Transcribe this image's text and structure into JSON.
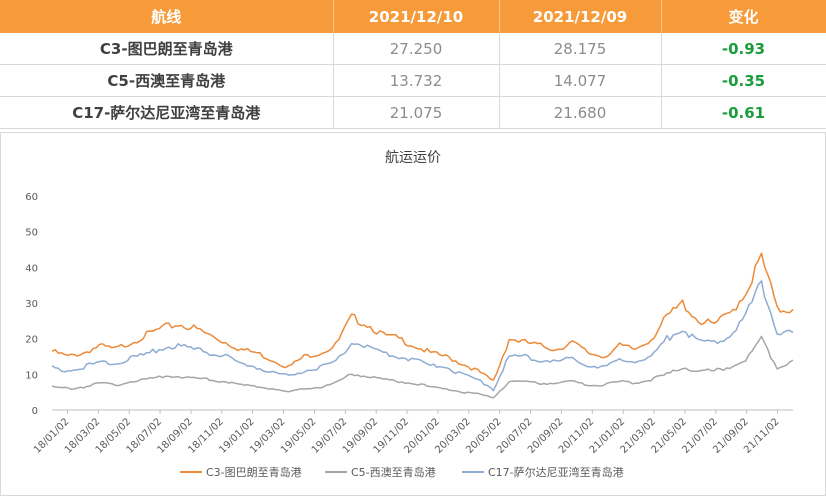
{
  "table": {
    "headers": [
      "航线",
      "2021/12/10",
      "2021/12/09",
      "变化"
    ],
    "rows": [
      {
        "route": "C3-图巴朗至青岛港",
        "v1": "27.250",
        "v2": "28.175",
        "change": "-0.93"
      },
      {
        "route": "C5-西澳至青岛港",
        "v1": "13.732",
        "v2": "14.077",
        "change": "-0.35"
      },
      {
        "route": "C17-萨尔达尼亚湾至青岛港",
        "v1": "21.075",
        "v2": "21.680",
        "change": "-0.61"
      }
    ]
  },
  "chart_data": {
    "type": "line",
    "title": "航运运价",
    "ylim": [
      0,
      60
    ],
    "yticks": [
      0,
      10,
      20,
      30,
      40,
      50,
      60
    ],
    "xtick_labels": [
      "18/01/02",
      "18/03/02",
      "18/05/02",
      "18/07/02",
      "18/09/02",
      "18/11/02",
      "19/01/02",
      "19/03/02",
      "19/05/02",
      "19/07/02",
      "19/09/02",
      "19/11/02",
      "20/01/02",
      "20/03/02",
      "20/05/02",
      "20/07/02",
      "20/09/02",
      "20/11/02",
      "21/01/02",
      "21/03/02",
      "21/05/02",
      "21/07/02",
      "21/09/02",
      "21/11/02"
    ],
    "x": [
      "18/01",
      "18/02",
      "18/03",
      "18/04",
      "18/05",
      "18/06",
      "18/07",
      "18/08",
      "18/09",
      "18/10",
      "18/11",
      "18/12",
      "19/01",
      "19/02",
      "19/03",
      "19/04",
      "19/05",
      "19/06",
      "19/07",
      "19/08",
      "19/09",
      "19/10",
      "19/11",
      "19/12",
      "20/01",
      "20/02",
      "20/03",
      "20/04",
      "20/05",
      "20/06",
      "20/07",
      "20/08",
      "20/09",
      "20/10",
      "20/11",
      "20/12",
      "21/01",
      "21/02",
      "21/03",
      "21/04",
      "21/05",
      "21/06",
      "21/07",
      "21/08",
      "21/09",
      "21/10",
      "21/11",
      "21/12"
    ],
    "grid": false,
    "legend_position": "bottom",
    "series": [
      {
        "name": "C3-图巴朗至青岛港",
        "color": "#ed8a37",
        "values": [
          16.5,
          15,
          16,
          18,
          17,
          19,
          21,
          23,
          24,
          23,
          21,
          19,
          17,
          16,
          14,
          12,
          15,
          16,
          18,
          26,
          24,
          21,
          20,
          18,
          16,
          15,
          13,
          11,
          8,
          20,
          19,
          18,
          17,
          19,
          16,
          15,
          18,
          17,
          20,
          26,
          30,
          25,
          24,
          27,
          33,
          43,
          28,
          28.2
        ]
      },
      {
        "name": "C5-西澳至青岛港",
        "color": "#a6a6a6",
        "values": [
          6.5,
          6,
          6.5,
          7.5,
          7,
          8,
          8.5,
          9.5,
          9.5,
          9,
          8.5,
          8,
          7,
          6.5,
          6,
          5,
          6,
          6.5,
          7.5,
          10,
          9.5,
          8.5,
          8,
          7.5,
          6.5,
          6,
          5,
          4.5,
          3.5,
          8,
          8,
          7.5,
          7.5,
          8,
          7,
          7,
          8,
          7.5,
          8.5,
          10,
          12,
          11,
          11,
          12,
          14,
          20,
          12,
          14
        ]
      },
      {
        "name": "C17-萨尔达尼亚湾至青岛港",
        "color": "#8eacd2",
        "values": [
          12,
          11,
          12,
          13.5,
          13,
          14.5,
          15.5,
          17.5,
          18,
          17,
          16,
          15,
          13,
          12,
          10.5,
          9.5,
          11,
          12,
          13.5,
          19,
          18,
          16,
          15,
          14,
          12.5,
          12,
          10,
          8.5,
          6,
          15,
          15,
          14,
          13.5,
          14.5,
          12.5,
          12,
          14,
          13.5,
          15,
          20,
          23,
          19,
          19,
          21,
          26,
          36,
          22,
          21.7
        ]
      }
    ]
  }
}
